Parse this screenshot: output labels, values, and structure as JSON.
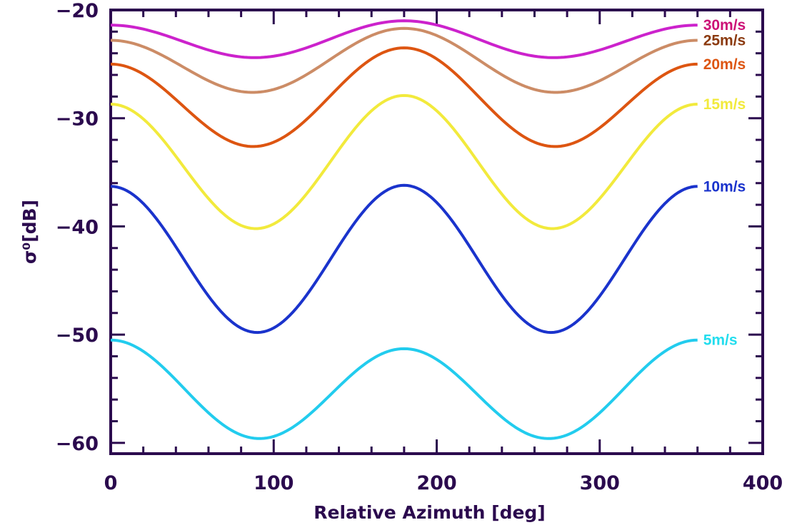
{
  "colors": {
    "axis": "#2b0a4e",
    "background": "#ffffff"
  },
  "chart_data": {
    "type": "line",
    "title": "",
    "xlabel": "Relative Azimuth [deg]",
    "ylabel": "σ⁰[dB]",
    "xlim": [
      0,
      400
    ],
    "ylim": [
      -61,
      -20
    ],
    "xticks": [
      0,
      100,
      200,
      300,
      400
    ],
    "xtick_labels": [
      "0",
      "100",
      "200",
      "300",
      "400"
    ],
    "yticks": [
      -60,
      -50,
      -40,
      -30,
      -20
    ],
    "ytick_labels": [
      "−60",
      "−50",
      "−40",
      "−30",
      "−20"
    ],
    "grid": false,
    "legend": "none; series labels printed at right end of each curve",
    "model": "sigma0(phi) = A0 + A1*cos(phi) + A2*cos(2*phi), phi in deg from 0 to 360",
    "series": [
      {
        "name": "30m/s",
        "color": "#cc22cc",
        "label_color": "#cc1177",
        "at_0": -21.4,
        "at_90": -24.4,
        "at_180": -21.0,
        "at_270": -24.4,
        "at_360": -21.4
      },
      {
        "name": "25m/s",
        "color": "#cc8c66",
        "label_color": "#8b3a0e",
        "at_0": -22.8,
        "at_90": -27.6,
        "at_180": -21.7,
        "at_270": -27.6,
        "at_360": -22.8
      },
      {
        "name": "20m/s",
        "color": "#dd5511",
        "label_color": "#dd5511",
        "at_0": -25.0,
        "at_90": -32.6,
        "at_180": -23.5,
        "at_270": -32.6,
        "at_360": -25.0
      },
      {
        "name": "15m/s",
        "color": "#f2ea3c",
        "label_color": "#f2ea3c",
        "at_0": -28.7,
        "at_90": -40.2,
        "at_180": -27.9,
        "at_270": -40.2,
        "at_360": -28.7
      },
      {
        "name": "10m/s",
        "color": "#1a33cc",
        "label_color": "#1a33cc",
        "at_0": -36.3,
        "at_90": -49.8,
        "at_180": -36.2,
        "at_270": -49.8,
        "at_360": -36.3
      },
      {
        "name": "5m/s",
        "color": "#22ccee",
        "label_color": "#22ddee",
        "at_0": -50.5,
        "at_90": -59.6,
        "at_180": -51.3,
        "at_270": -59.6,
        "at_360": -50.5
      }
    ]
  }
}
